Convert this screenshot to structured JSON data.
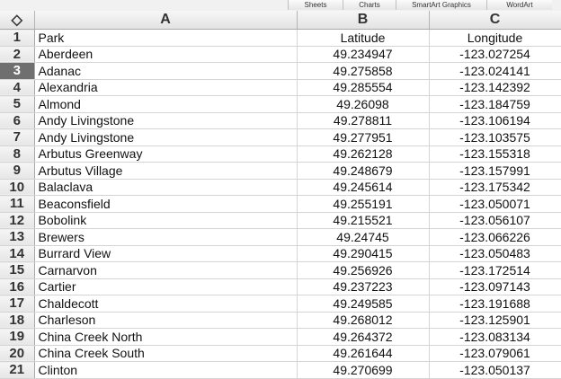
{
  "ribbon": {
    "tabs": [
      {
        "label": "Sheets",
        "name": "tab-sheets"
      },
      {
        "label": "Charts",
        "name": "tab-charts"
      },
      {
        "label": "SmartArt Graphics",
        "name": "tab-smartart-graphics"
      },
      {
        "label": "WordArt",
        "name": "tab-wordart"
      }
    ]
  },
  "sheet": {
    "corner_icon": "select-all-icon",
    "corner_glyph": "◇",
    "selected_row": 3,
    "columns": [
      "A",
      "B",
      "C"
    ],
    "rows": [
      {
        "num": "1",
        "cells": [
          "Park",
          "Latitude",
          "Longitude"
        ]
      },
      {
        "num": "2",
        "cells": [
          "Aberdeen",
          "49.234947",
          "-123.027254"
        ]
      },
      {
        "num": "3",
        "cells": [
          "Adanac",
          "49.275858",
          "-123.024141"
        ]
      },
      {
        "num": "4",
        "cells": [
          "Alexandria",
          "49.285554",
          "-123.142392"
        ]
      },
      {
        "num": "5",
        "cells": [
          "Almond",
          "49.26098",
          "-123.184759"
        ]
      },
      {
        "num": "6",
        "cells": [
          "Andy Livingstone",
          "49.278811",
          "-123.106194"
        ]
      },
      {
        "num": "7",
        "cells": [
          "Andy Livingstone",
          "49.277951",
          "-123.103575"
        ]
      },
      {
        "num": "8",
        "cells": [
          "Arbutus Greenway",
          "49.262128",
          "-123.155318"
        ]
      },
      {
        "num": "9",
        "cells": [
          "Arbutus Village",
          "49.248679",
          "-123.157991"
        ]
      },
      {
        "num": "10",
        "cells": [
          "Balaclava",
          "49.245614",
          "-123.175342"
        ]
      },
      {
        "num": "11",
        "cells": [
          "Beaconsfield",
          "49.255191",
          "-123.050071"
        ]
      },
      {
        "num": "12",
        "cells": [
          "Bobolink",
          "49.215521",
          "-123.056107"
        ]
      },
      {
        "num": "13",
        "cells": [
          "Brewers",
          "49.24745",
          "-123.066226"
        ]
      },
      {
        "num": "14",
        "cells": [
          "Burrard View",
          "49.290415",
          "-123.050483"
        ]
      },
      {
        "num": "15",
        "cells": [
          "Carnarvon",
          "49.256926",
          "-123.172514"
        ]
      },
      {
        "num": "16",
        "cells": [
          "Cartier",
          "49.237223",
          "-123.097143"
        ]
      },
      {
        "num": "17",
        "cells": [
          "Chaldecott",
          "49.249585",
          "-123.191688"
        ]
      },
      {
        "num": "18",
        "cells": [
          "Charleson",
          "49.268012",
          "-123.125901"
        ]
      },
      {
        "num": "19",
        "cells": [
          "China Creek North",
          "49.264372",
          "-123.083134"
        ]
      },
      {
        "num": "20",
        "cells": [
          "China Creek South",
          "49.261644",
          "-123.079061"
        ]
      },
      {
        "num": "21",
        "cells": [
          "Clinton",
          "49.270699",
          "-123.050137"
        ]
      }
    ]
  }
}
